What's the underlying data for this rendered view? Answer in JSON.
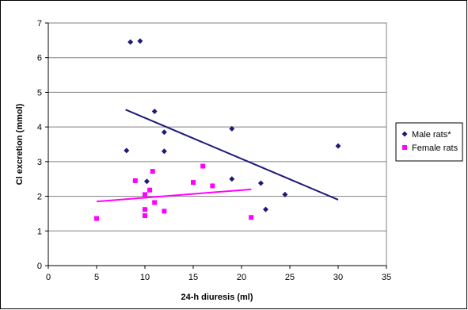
{
  "chart_data": {
    "type": "scatter",
    "xlabel": "24-h diuresis (ml)",
    "ylabel": "Cl excretion (mmol)",
    "xlim": [
      0,
      35
    ],
    "ylim": [
      0,
      7
    ],
    "x_ticks": [
      "0",
      "5",
      "10",
      "15",
      "20",
      "25",
      "30",
      "35"
    ],
    "y_ticks": [
      "0",
      "1",
      "2",
      "3",
      "4",
      "5",
      "6",
      "7"
    ],
    "grid": "horizontal",
    "legend_position": "right",
    "series": [
      {
        "name": "Male rats*",
        "color": "#1f1a7a",
        "marker": "diamond",
        "points": [
          [
            8.5,
            6.45
          ],
          [
            9.5,
            6.48
          ],
          [
            8.1,
            3.32
          ],
          [
            10.2,
            2.43
          ],
          [
            11,
            4.45
          ],
          [
            12,
            3.85
          ],
          [
            12,
            3.3
          ],
          [
            19,
            3.95
          ],
          [
            19,
            2.5
          ],
          [
            22,
            2.38
          ],
          [
            22.5,
            1.62
          ],
          [
            24.5,
            2.05
          ],
          [
            30,
            3.45
          ]
        ],
        "trendline": [
          [
            8,
            4.5
          ],
          [
            30,
            1.9
          ]
        ]
      },
      {
        "name": "Female rats",
        "color": "#ff00ff",
        "marker": "square",
        "points": [
          [
            5,
            1.36
          ],
          [
            9,
            2.45
          ],
          [
            10,
            2.05
          ],
          [
            10,
            1.62
          ],
          [
            10,
            1.44
          ],
          [
            10.5,
            2.18
          ],
          [
            10.8,
            2.72
          ],
          [
            11,
            1.82
          ],
          [
            12,
            1.57
          ],
          [
            15,
            2.4
          ],
          [
            16,
            2.87
          ],
          [
            17,
            2.3
          ],
          [
            21,
            1.39
          ]
        ],
        "trendline": [
          [
            5,
            1.85
          ],
          [
            21,
            2.2
          ]
        ]
      }
    ]
  }
}
